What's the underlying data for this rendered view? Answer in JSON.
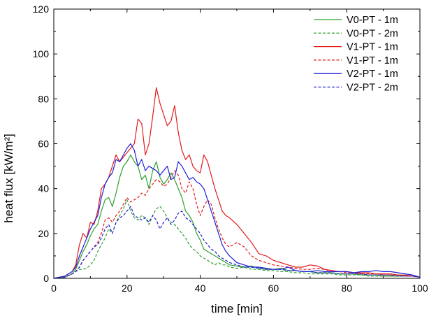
{
  "chart_data": {
    "type": "line",
    "title": "",
    "xlabel": "time [min]",
    "ylabel": "heat flux [kW/m²]",
    "xlim": [
      0,
      100
    ],
    "ylim": [
      0,
      120
    ],
    "xticks": [
      0,
      20,
      40,
      60,
      80,
      100
    ],
    "yticks": [
      0,
      20,
      40,
      60,
      80,
      100,
      120
    ],
    "grid": false,
    "legend_position": "top-right",
    "series": [
      {
        "name": "V0-PT - 1m",
        "color": "#2ca02c",
        "dash": "solid",
        "x": [
          0,
          3,
          5,
          6,
          7,
          8,
          9,
          10,
          11,
          12,
          13,
          14,
          15,
          16,
          17,
          18,
          19,
          20,
          21,
          22,
          23,
          24,
          25,
          26,
          27,
          28,
          29,
          30,
          31,
          32,
          33,
          34,
          35,
          36,
          37,
          38,
          39,
          40,
          41,
          42,
          43,
          44,
          45,
          46,
          47,
          48,
          50,
          52,
          54,
          56,
          58,
          60,
          62,
          64,
          66,
          68,
          70,
          72,
          74,
          76,
          78,
          80,
          82,
          84,
          86,
          88,
          90,
          92,
          94,
          96,
          98,
          100
        ],
        "y": [
          0,
          0.5,
          2,
          4,
          8,
          12,
          15,
          19,
          22,
          24,
          30,
          35,
          36,
          32,
          38,
          45,
          50,
          52,
          55,
          52,
          50,
          44,
          46,
          40,
          48,
          52,
          45,
          42,
          44,
          47,
          44,
          40,
          36,
          30,
          28,
          25,
          20,
          17,
          13,
          12,
          11,
          10,
          9,
          8,
          7,
          6,
          5.5,
          5,
          5.5,
          4.5,
          4,
          4,
          4.5,
          3.5,
          3.5,
          3,
          3,
          2.5,
          2.5,
          2.5,
          2,
          2,
          2,
          1.5,
          1.5,
          1.5,
          1,
          1,
          1,
          1.5,
          1,
          0.5
        ]
      },
      {
        "name": "V0-PT - 2m",
        "color": "#2ca02c",
        "dash": "dashed",
        "x": [
          0,
          3,
          5,
          6,
          7,
          8,
          9,
          10,
          11,
          12,
          13,
          14,
          15,
          16,
          17,
          18,
          19,
          20,
          21,
          22,
          23,
          24,
          25,
          26,
          27,
          28,
          29,
          30,
          31,
          32,
          33,
          34,
          35,
          36,
          37,
          38,
          39,
          40,
          41,
          42,
          43,
          44,
          45,
          46,
          47,
          48,
          50,
          52,
          54,
          56,
          58,
          60,
          62,
          64,
          66,
          68,
          70,
          72,
          74,
          76,
          78,
          80,
          82,
          84,
          86,
          88,
          90,
          92,
          94,
          96,
          98,
          100
        ],
        "y": [
          0,
          0.5,
          2,
          3,
          4,
          4,
          4.5,
          6,
          8,
          12,
          15,
          18,
          22,
          20,
          25,
          28,
          31,
          35,
          30,
          27,
          26,
          28,
          27,
          24,
          28,
          31,
          32,
          30,
          27,
          25,
          24,
          22,
          20,
          18,
          15,
          13,
          12,
          10,
          9,
          8,
          7,
          6,
          7,
          6,
          6,
          5,
          4.5,
          5,
          4,
          4,
          3.5,
          3.5,
          3,
          3,
          2.5,
          2.5,
          2,
          2,
          2,
          2,
          1.5,
          1.5,
          1.5,
          1.5,
          1,
          1,
          1,
          1,
          1,
          1,
          1,
          0.5
        ]
      },
      {
        "name": "V1-PT - 1m",
        "color": "#e31a1c",
        "dash": "solid",
        "x": [
          0,
          3,
          5,
          6,
          7,
          8,
          9,
          10,
          11,
          12,
          13,
          14,
          15,
          16,
          17,
          18,
          19,
          20,
          21,
          22,
          23,
          24,
          25,
          26,
          27,
          28,
          29,
          30,
          31,
          32,
          33,
          34,
          35,
          36,
          37,
          38,
          39,
          40,
          41,
          42,
          43,
          44,
          45,
          46,
          47,
          48,
          50,
          52,
          54,
          56,
          58,
          60,
          62,
          64,
          66,
          68,
          70,
          72,
          74,
          76,
          78,
          80,
          82,
          84,
          86,
          88,
          90,
          92,
          94,
          96,
          98,
          100
        ],
        "y": [
          0,
          1,
          3,
          6,
          15,
          20,
          18,
          25,
          24,
          30,
          40,
          42,
          45,
          50,
          55,
          52,
          54,
          56,
          58,
          60,
          71,
          69,
          55,
          60,
          72,
          85,
          78,
          73,
          68,
          70,
          77,
          65,
          57,
          53,
          55,
          50,
          48,
          47,
          55,
          52,
          46,
          40,
          35,
          30,
          28,
          27,
          24,
          20,
          16,
          11,
          10,
          8,
          7,
          6,
          5,
          5,
          6,
          5.5,
          4,
          3.5,
          3,
          3,
          2.5,
          2.5,
          2.5,
          2,
          2,
          2,
          1.5,
          1.5,
          1,
          0.5
        ]
      },
      {
        "name": "V1-PT - 1m",
        "color": "#e31a1c",
        "dash": "dashed",
        "x": [
          0,
          3,
          5,
          6,
          7,
          8,
          9,
          10,
          11,
          12,
          13,
          14,
          15,
          16,
          17,
          18,
          19,
          20,
          21,
          22,
          23,
          24,
          25,
          26,
          27,
          28,
          29,
          30,
          31,
          32,
          33,
          34,
          35,
          36,
          37,
          38,
          39,
          40,
          41,
          42,
          43,
          44,
          45,
          46,
          47,
          48,
          50,
          52,
          54,
          56,
          58,
          60,
          62,
          64,
          66,
          68,
          70,
          72,
          74,
          76,
          78,
          80,
          82,
          84,
          86,
          88,
          90,
          92,
          94,
          96,
          98,
          100
        ],
        "y": [
          0,
          0.5,
          2,
          3,
          5,
          8,
          10,
          12,
          14,
          16,
          20,
          26,
          27,
          25,
          28,
          30,
          33,
          36,
          34,
          35,
          36,
          38,
          37,
          40,
          42,
          44,
          43,
          41,
          42,
          45,
          48,
          46,
          40,
          38,
          43,
          40,
          33,
          28,
          32,
          35,
          33,
          27,
          22,
          18,
          15,
          14,
          16,
          14,
          10,
          8,
          7,
          6,
          5.5,
          5,
          4.5,
          4,
          4,
          4.5,
          4,
          3,
          3,
          2.5,
          2.5,
          2,
          2,
          2,
          1.5,
          1.5,
          1.5,
          1,
          1,
          0.5
        ]
      },
      {
        "name": "V2-PT - 1m",
        "color": "#1f1fd6",
        "dash": "solid",
        "x": [
          0,
          3,
          5,
          6,
          7,
          8,
          9,
          10,
          11,
          12,
          13,
          14,
          15,
          16,
          17,
          18,
          19,
          20,
          21,
          22,
          23,
          24,
          25,
          26,
          27,
          28,
          29,
          30,
          31,
          32,
          33,
          34,
          35,
          36,
          37,
          38,
          39,
          40,
          41,
          42,
          43,
          44,
          45,
          46,
          47,
          48,
          50,
          52,
          54,
          56,
          58,
          60,
          62,
          64,
          66,
          68,
          70,
          72,
          74,
          76,
          78,
          80,
          82,
          84,
          86,
          88,
          90,
          92,
          94,
          96,
          98,
          100
        ],
        "y": [
          0,
          1,
          3,
          5,
          10,
          14,
          18,
          22,
          25,
          28,
          36,
          42,
          45,
          47,
          53,
          52,
          55,
          58,
          60,
          57,
          50,
          53,
          48,
          50,
          49,
          48,
          46,
          48,
          50,
          44,
          45,
          52,
          50,
          47,
          44,
          45,
          43,
          42,
          40,
          35,
          30,
          25,
          20,
          15,
          12,
          10,
          7,
          6,
          5,
          5,
          4.5,
          4,
          4,
          5,
          3.5,
          3,
          3,
          3.5,
          3,
          3,
          3,
          3,
          2.5,
          3,
          3,
          3.5,
          3,
          3,
          2.5,
          2,
          1.5,
          0.5
        ]
      },
      {
        "name": "V2-PT - 2m",
        "color": "#1f1fd6",
        "dash": "dashed",
        "x": [
          0,
          3,
          5,
          6,
          7,
          8,
          9,
          10,
          11,
          12,
          13,
          14,
          15,
          16,
          17,
          18,
          19,
          20,
          21,
          22,
          23,
          24,
          25,
          26,
          27,
          28,
          29,
          30,
          31,
          32,
          33,
          34,
          35,
          36,
          37,
          38,
          39,
          40,
          41,
          42,
          43,
          44,
          45,
          46,
          47,
          48,
          50,
          52,
          54,
          56,
          58,
          60,
          62,
          64,
          66,
          68,
          70,
          72,
          74,
          76,
          78,
          80,
          82,
          84,
          86,
          88,
          90,
          92,
          94,
          96,
          98,
          100
        ],
        "y": [
          0,
          0.5,
          2,
          3,
          5,
          8,
          10,
          12,
          14,
          15,
          18,
          22,
          24,
          20,
          25,
          27,
          28,
          30,
          32,
          28,
          27,
          26,
          27,
          25,
          28,
          26,
          22,
          25,
          27,
          24,
          26,
          29,
          30,
          27,
          26,
          24,
          22,
          20,
          17,
          15,
          13,
          12,
          10,
          9,
          8,
          7,
          6,
          5,
          5,
          4.5,
          4,
          4,
          4,
          3.5,
          3.5,
          3,
          3,
          2.5,
          2.5,
          2.5,
          2,
          2,
          2,
          2,
          1.5,
          1.5,
          1.5,
          1.5,
          1,
          1,
          1,
          0.5
        ]
      }
    ]
  }
}
